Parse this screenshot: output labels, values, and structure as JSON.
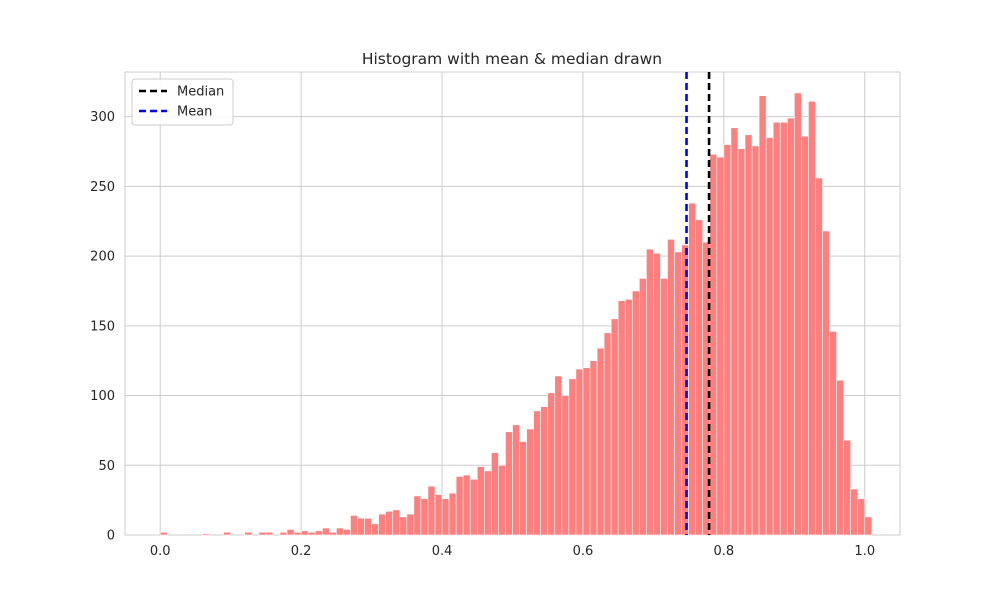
{
  "chart_data": {
    "type": "bar",
    "title": "Histogram with mean & median drawn",
    "xlabel": "",
    "ylabel": "",
    "xlim": [
      -0.05,
      1.05
    ],
    "ylim": [
      0,
      332
    ],
    "x_ticks": [
      0.0,
      0.2,
      0.4,
      0.6,
      0.8,
      1.0
    ],
    "x_tick_labels": [
      "0.0",
      "0.2",
      "0.4",
      "0.6",
      "0.8",
      "1.0"
    ],
    "y_ticks": [
      0,
      50,
      100,
      150,
      200,
      250,
      300
    ],
    "y_tick_labels": [
      "0",
      "50",
      "100",
      "150",
      "200",
      "250",
      "300"
    ],
    "grid": true,
    "bar_color": "#ff7f7f",
    "bin_start": 0.0,
    "bin_width": 0.01,
    "values": [
      2,
      0,
      0,
      0,
      0,
      0,
      1,
      0,
      0,
      2,
      0,
      0,
      2,
      0,
      2,
      2,
      0,
      2,
      4,
      2,
      3,
      2,
      3,
      5,
      2,
      5,
      4,
      14,
      12,
      12,
      8,
      15,
      17,
      18,
      13,
      15,
      28,
      26,
      35,
      29,
      26,
      30,
      42,
      43,
      40,
      49,
      46,
      59,
      50,
      74,
      79,
      67,
      76,
      89,
      92,
      102,
      114,
      100,
      112,
      119,
      120,
      125,
      134,
      145,
      155,
      168,
      169,
      175,
      184,
      205,
      202,
      184,
      212,
      203,
      208,
      238,
      226,
      210,
      273,
      271,
      280,
      292,
      277,
      287,
      279,
      315,
      285,
      296,
      296,
      299,
      317,
      286,
      311,
      256,
      218,
      146,
      111,
      68,
      33,
      26,
      13
    ],
    "vlines": [
      {
        "name": "Median",
        "x": 0.779,
        "color": "#000000"
      },
      {
        "name": "Mean",
        "x": 0.747,
        "color": "#0000ff"
      }
    ],
    "legend": {
      "placement": "top-left",
      "entries": [
        {
          "label": "Median",
          "color": "#000000"
        },
        {
          "label": "Mean",
          "color": "#0000ff"
        }
      ]
    }
  }
}
